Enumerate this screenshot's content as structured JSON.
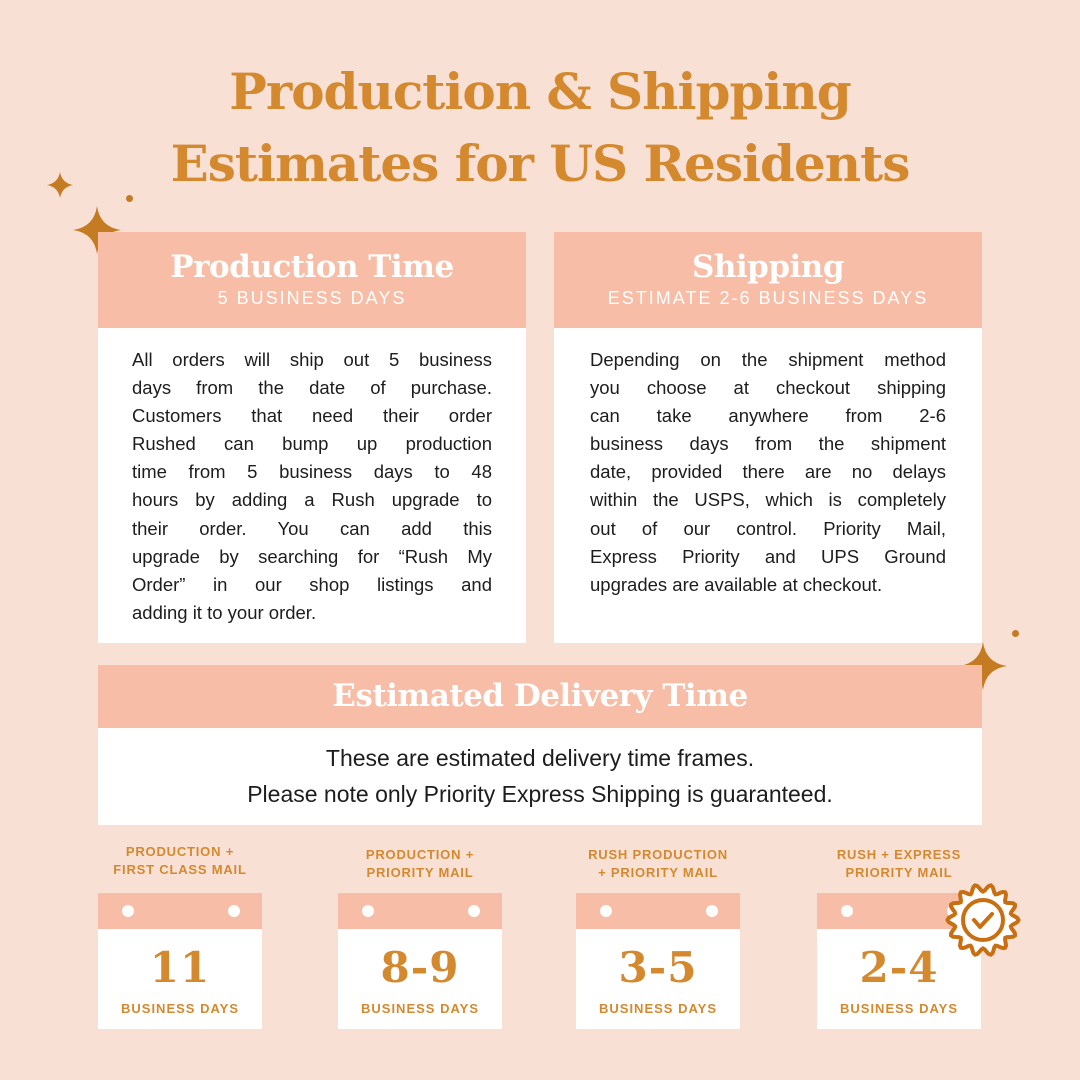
{
  "title": {
    "line1": "Production & Shipping",
    "line2": "Estimates for US Residents"
  },
  "production": {
    "heading": "Production Time",
    "subheading": "5 BUSINESS DAYS",
    "lines": [
      "All orders will ship out 5 business",
      "days from the date of purchase.",
      "Customers that need their order",
      "Rushed can bump up production",
      "time from 5 business days to 48",
      "hours by adding a Rush upgrade to",
      "their order. You can add this",
      "upgrade by searching for “Rush My",
      "Order” in our shop listings and",
      "adding it to your order."
    ]
  },
  "shipping": {
    "heading": "Shipping",
    "subheading": "ESTIMATE 2-6 BUSINESS DAYS",
    "lines": [
      "Depending on the shipment method",
      "you choose at checkout shipping",
      "can take anywhere from 2-6",
      "business days from the shipment",
      "date, provided there are no delays",
      "within the USPS, which is completely",
      "out of our control. Priority Mail,",
      "Express Priority and UPS Ground",
      "upgrades are available at checkout."
    ]
  },
  "delivery": {
    "heading": "Estimated Delivery Time",
    "line1": "These are estimated delivery time frames.",
    "line2": "Please note only Priority Express Shipping is guaranteed."
  },
  "options": [
    {
      "label1": "PRODUCTION +",
      "label2": "FIRST CLASS MAIL",
      "days": "11",
      "unit": "BUSINESS DAYS"
    },
    {
      "label1": "PRODUCTION +",
      "label2": "PRIORITY MAIL",
      "days": "8-9",
      "unit": "BUSINESS DAYS"
    },
    {
      "label1": "RUSH PRODUCTION",
      "label2": "+ PRIORITY MAIL",
      "days": "3-5",
      "unit": "BUSINESS DAYS"
    },
    {
      "label1": "RUSH + EXPRESS",
      "label2": "PRIORITY MAIL",
      "days": "2-4",
      "unit": "BUSINESS DAYS",
      "badge": "verified-check-badge-icon"
    }
  ],
  "colors": {
    "background": "#f9e0d5",
    "accent": "#d4892f",
    "header": "#f8bda6"
  }
}
